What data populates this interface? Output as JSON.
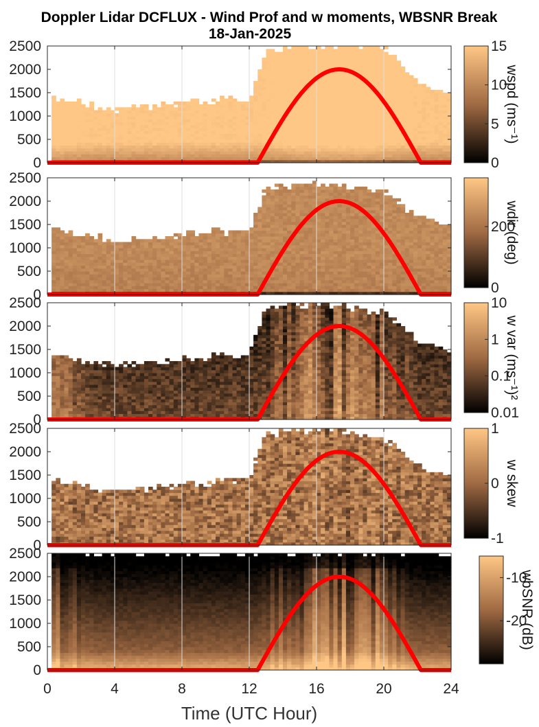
{
  "title_line1": "Doppler Lidar DCFLUX - Wind Prof and w moments, WBSNR Break",
  "title_line2": "18-Jan-2025",
  "xlabel": "Time (UTC Hour)",
  "colors": {
    "cmap_low": "#000000",
    "cmap_mid": "#a06a43",
    "cmap_high": "#ffc785",
    "sun_curve": "#ff0000",
    "grid": "#dddddd"
  },
  "chart_data": [
    {
      "type": "heatmap",
      "name": "wspd panel",
      "x_range": [
        0,
        24
      ],
      "ylim": [
        0,
        2500
      ],
      "x_ticks": [
        "0",
        "4",
        "8",
        "12",
        "16",
        "20",
        "24"
      ],
      "y_ticks": [
        "0",
        "500",
        "1000",
        "1500",
        "2000",
        "2500"
      ],
      "colorbar": {
        "label": "wspd (ms⁻¹)",
        "ticks": [
          "0",
          "5",
          "10",
          "15"
        ],
        "range": [
          0,
          15
        ]
      },
      "data_top_m": {
        "x": [
          0,
          2,
          4,
          6,
          8,
          10,
          12,
          13,
          16,
          20,
          22,
          24
        ],
        "y": [
          1450,
          1300,
          1150,
          1200,
          1300,
          1350,
          1350,
          2400,
          2500,
          2500,
          1700,
          1450
        ]
      },
      "sun_elevation_curve": {
        "x": [
          0,
          12.5,
          17.3,
          22.2,
          24
        ],
        "y": [
          0,
          0,
          2000,
          0,
          0
        ]
      }
    },
    {
      "type": "heatmap",
      "name": "wdir panel",
      "x_range": [
        0,
        24
      ],
      "ylim": [
        0,
        2500
      ],
      "x_ticks": [
        "0",
        "4",
        "8",
        "12",
        "16",
        "20",
        "24"
      ],
      "y_ticks": [
        "0",
        "500",
        "1000",
        "1500",
        "2000",
        "2500"
      ],
      "colorbar": {
        "label": "wdir (deg)",
        "ticks": [
          "0",
          "200"
        ],
        "range": [
          0,
          360
        ]
      },
      "data_top_m": {
        "x": [
          0,
          2,
          4,
          6,
          8,
          10,
          12,
          13,
          16,
          20,
          22,
          24
        ],
        "y": [
          1450,
          1300,
          1150,
          1200,
          1300,
          1350,
          1350,
          2300,
          2400,
          2200,
          1700,
          1450
        ]
      },
      "sun_elevation_curve": {
        "x": [
          0,
          12.5,
          17.3,
          22.2,
          24
        ],
        "y": [
          0,
          0,
          2000,
          0,
          0
        ]
      }
    },
    {
      "type": "heatmap",
      "name": "w var panel",
      "x_range": [
        0,
        24
      ],
      "ylim": [
        0,
        2500
      ],
      "x_ticks": [
        "0",
        "4",
        "8",
        "12",
        "16",
        "20",
        "24"
      ],
      "y_ticks": [
        "0",
        "500",
        "1000",
        "1500",
        "2000",
        "2500"
      ],
      "colorbar": {
        "label": "w var (ms⁻¹)²",
        "ticks": [
          "0.01",
          "0.1",
          "1",
          "10"
        ],
        "range": [
          0.01,
          10
        ],
        "scale": "log"
      },
      "data_top_m": {
        "x": [
          0,
          2,
          4,
          6,
          8,
          10,
          12,
          13,
          16,
          20,
          22,
          24
        ],
        "y": [
          1450,
          1300,
          1150,
          1200,
          1300,
          1350,
          1400,
          2400,
          2500,
          2300,
          1700,
          1450
        ]
      },
      "sun_elevation_curve": {
        "x": [
          0,
          12.5,
          17.3,
          22.2,
          24
        ],
        "y": [
          0,
          0,
          2000,
          0,
          0
        ]
      }
    },
    {
      "type": "heatmap",
      "name": "w skew panel",
      "x_range": [
        0,
        24
      ],
      "ylim": [
        0,
        2500
      ],
      "x_ticks": [
        "0",
        "4",
        "8",
        "12",
        "16",
        "20",
        "24"
      ],
      "y_ticks": [
        "0",
        "500",
        "1000",
        "1500",
        "2000",
        "2500"
      ],
      "colorbar": {
        "label": "w skew",
        "ticks": [
          "-1",
          "0",
          "1"
        ],
        "range": [
          -1,
          1
        ]
      },
      "data_top_m": {
        "x": [
          0,
          2,
          4,
          6,
          8,
          10,
          12,
          13,
          16,
          20,
          22,
          24
        ],
        "y": [
          1450,
          1300,
          1150,
          1200,
          1300,
          1350,
          1400,
          2400,
          2500,
          2300,
          1700,
          1450
        ]
      },
      "sun_elevation_curve": {
        "x": [
          0,
          12.5,
          17.3,
          22.2,
          24
        ],
        "y": [
          0,
          0,
          2000,
          0,
          0
        ]
      }
    },
    {
      "type": "heatmap",
      "name": "wbSNR panel",
      "x_range": [
        0,
        24
      ],
      "ylim": [
        0,
        2500
      ],
      "x_ticks": [
        "0",
        "4",
        "8",
        "12",
        "16",
        "20",
        "24"
      ],
      "y_ticks": [
        "0",
        "500",
        "1000",
        "1500",
        "2000",
        "2500"
      ],
      "colorbar": {
        "label": "wbSNR (dB)",
        "ticks": [
          "-20",
          "-10"
        ],
        "range": [
          -30,
          -5
        ]
      },
      "data_top_m": {
        "x": [
          0,
          24
        ],
        "y": [
          2500,
          2500
        ]
      },
      "sun_elevation_curve": {
        "x": [
          0,
          12.5,
          17.3,
          22.2,
          24
        ],
        "y": [
          0,
          0,
          2000,
          0,
          0
        ]
      }
    }
  ]
}
